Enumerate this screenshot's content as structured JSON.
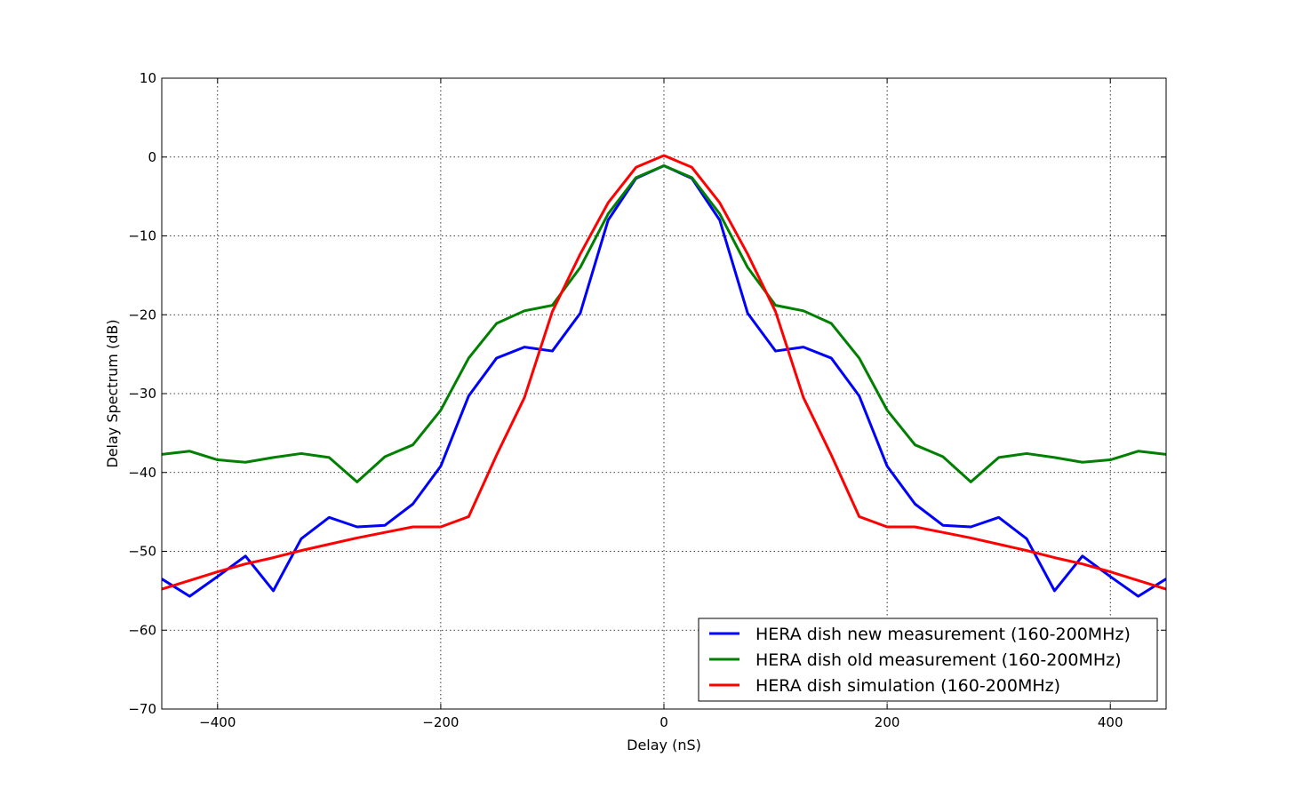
{
  "chart_data": {
    "type": "line",
    "title": "",
    "xlabel": "Delay (nS)",
    "ylabel": "Delay Spectrum (dB)",
    "xlim": [
      -450,
      450
    ],
    "ylim": [
      -70,
      10
    ],
    "xticks": [
      -400,
      -200,
      0,
      200,
      400
    ],
    "xtick_labels": [
      "−400",
      "−200",
      "0",
      "200",
      "400"
    ],
    "yticks": [
      10,
      0,
      -10,
      -20,
      -30,
      -40,
      -50,
      -60,
      -70
    ],
    "ytick_labels": [
      "10",
      "0",
      "−10",
      "−20",
      "−30",
      "−40",
      "−50",
      "−60",
      "−70"
    ],
    "grid": true,
    "legend_position": "lower-right",
    "x": [
      -450,
      -425,
      -400,
      -375,
      -350,
      -325,
      -300,
      -275,
      -250,
      -225,
      -200,
      -175,
      -150,
      -125,
      -100,
      -75,
      -50,
      -25,
      0,
      25,
      50,
      75,
      100,
      125,
      150,
      175,
      200,
      225,
      250,
      275,
      300,
      325,
      350,
      375,
      400,
      425,
      450
    ],
    "series": [
      {
        "name": "HERA dish new measurement (160-200MHz)",
        "color": "#0000ff",
        "values": [
          -53.5,
          -55.7,
          -53.2,
          -50.6,
          -55.0,
          -48.4,
          -45.7,
          -46.9,
          -46.7,
          -44.0,
          -39.2,
          -30.3,
          -25.5,
          -24.1,
          -24.6,
          -19.8,
          -8.0,
          -2.7,
          -1.1,
          -2.7,
          -8.0,
          -19.8,
          -24.6,
          -24.1,
          -25.5,
          -30.3,
          -39.2,
          -44.0,
          -46.7,
          -46.9,
          -45.7,
          -48.4,
          -55.0,
          -50.6,
          -53.2,
          -55.7,
          -53.5
        ]
      },
      {
        "name": "HERA dish old measurement (160-200MHz)",
        "color": "#008000",
        "values": [
          -37.7,
          -37.3,
          -38.4,
          -38.7,
          -38.1,
          -37.6,
          -38.1,
          -41.2,
          -38.0,
          -36.5,
          -32.1,
          -25.5,
          -21.1,
          -19.5,
          -18.8,
          -14.0,
          -7.2,
          -2.6,
          -1.1,
          -2.6,
          -7.2,
          -14.0,
          -18.8,
          -19.5,
          -21.1,
          -25.5,
          -32.1,
          -36.5,
          -38.0,
          -41.2,
          -38.1,
          -37.6,
          -38.1,
          -38.7,
          -38.4,
          -37.3,
          -37.7
        ]
      },
      {
        "name": "HERA dish simulation (160-200MHz)",
        "color": "#ff0000",
        "values": [
          -54.8,
          -53.7,
          -52.6,
          -51.6,
          -50.8,
          -49.9,
          -49.1,
          -48.3,
          -47.6,
          -46.9,
          -46.9,
          -45.6,
          -37.8,
          -30.5,
          -19.6,
          -12.3,
          -5.8,
          -1.3,
          0.2,
          -1.3,
          -5.8,
          -12.3,
          -19.6,
          -30.5,
          -37.8,
          -45.6,
          -46.9,
          -46.9,
          -47.6,
          -48.3,
          -49.1,
          -49.9,
          -50.8,
          -51.6,
          -52.6,
          -53.7,
          -54.8
        ]
      }
    ]
  }
}
